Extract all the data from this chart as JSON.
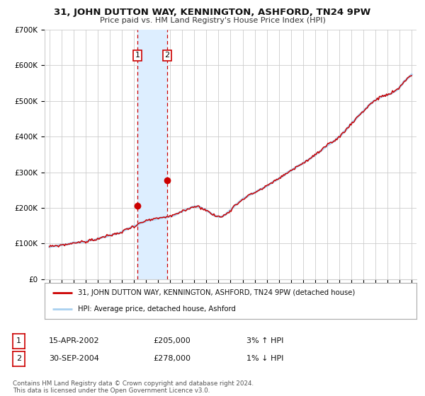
{
  "title": "31, JOHN DUTTON WAY, KENNINGTON, ASHFORD, TN24 9PW",
  "subtitle": "Price paid vs. HM Land Registry's House Price Index (HPI)",
  "legend_line1": "31, JOHN DUTTON WAY, KENNINGTON, ASHFORD, TN24 9PW (detached house)",
  "legend_line2": "HPI: Average price, detached house, Ashford",
  "transaction1_label": "1",
  "transaction1_date": "15-APR-2002",
  "transaction1_price": 205000,
  "transaction1_pct": "3% ↑ HPI",
  "transaction2_label": "2",
  "transaction2_date": "30-SEP-2004",
  "transaction2_price": 278000,
  "transaction2_pct": "1% ↓ HPI",
  "footnote": "Contains HM Land Registry data © Crown copyright and database right 2024.\nThis data is licensed under the Open Government Licence v3.0.",
  "hpi_color": "#a8d0f0",
  "price_color": "#cc0000",
  "marker_color": "#cc0000",
  "vline_color": "#cc0000",
  "shade_color": "#ddeeff",
  "grid_color": "#cccccc",
  "background_color": "#ffffff",
  "ylim": [
    0,
    700000
  ],
  "yticks": [
    0,
    100000,
    200000,
    300000,
    400000,
    500000,
    600000,
    700000
  ],
  "ytick_labels": [
    "£0",
    "£100K",
    "£200K",
    "£300K",
    "£400K",
    "£500K",
    "£600K",
    "£700K"
  ],
  "start_year": 1995,
  "end_year": 2025,
  "transaction1_year": 2002.29,
  "transaction2_year": 2004.75
}
